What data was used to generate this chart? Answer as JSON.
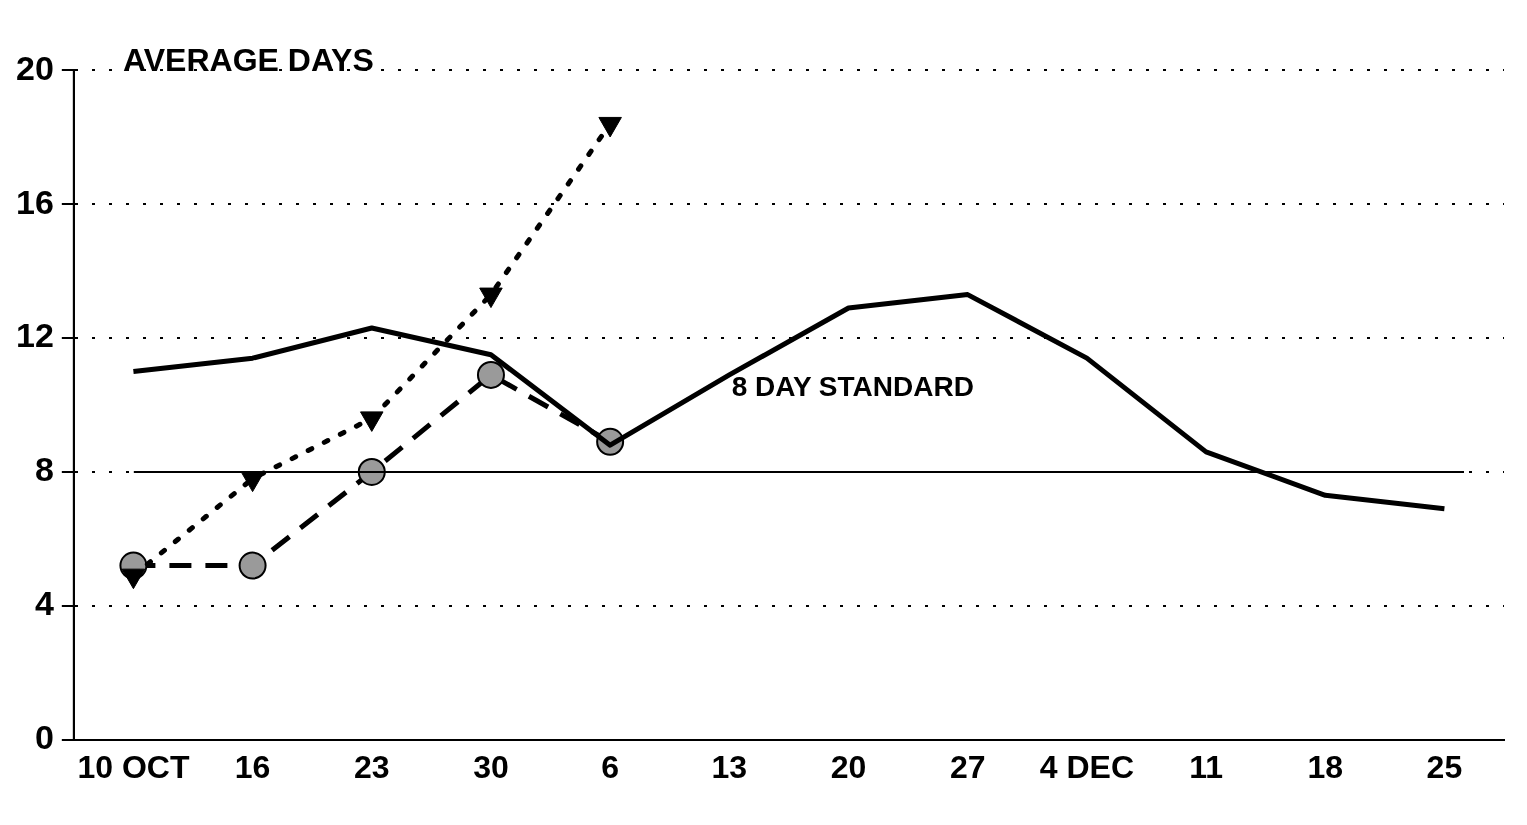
{
  "chart_data": {
    "type": "line",
    "ylabel": "AVERAGE DAYS",
    "categories": [
      "10 OCT",
      "16",
      "23",
      "30",
      "6",
      "13",
      "20",
      "27",
      "4 DEC",
      "11",
      "18",
      "25"
    ],
    "series": [
      {
        "color": "#000000",
        "line_style": "solid",
        "marker": "none",
        "values": [
          11.0,
          11.4,
          12.3,
          11.5,
          8.8,
          10.9,
          12.9,
          13.3,
          11.4,
          8.6,
          7.3,
          6.9
        ]
      },
      {
        "color": "#000000",
        "line_style": "dashed",
        "marker": "circle",
        "values": [
          5.2,
          5.2,
          8.0,
          10.9,
          8.9,
          null,
          null,
          null,
          null,
          null,
          null,
          null
        ]
      },
      {
        "color": "#000000",
        "line_style": "dotted",
        "marker": "triangle",
        "values": [
          4.9,
          7.8,
          9.6,
          13.3,
          18.4,
          null,
          null,
          null,
          null,
          null,
          null,
          null
        ]
      }
    ],
    "ylim": [
      0,
      20
    ],
    "yticks": [
      0,
      4,
      8,
      12,
      16,
      20
    ],
    "grid": "y",
    "legend": false,
    "ref_lines": [
      {
        "axis": "y",
        "value": 8,
        "label": "8 DAY STANDARD",
        "color": "#000000"
      }
    ]
  }
}
